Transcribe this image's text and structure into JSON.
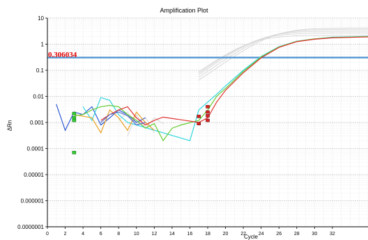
{
  "chart_data": {
    "type": "line",
    "title": "Amplification Plot",
    "xlabel": "Cycle",
    "ylabel": "ΔRn",
    "yscale": "log",
    "xlim": [
      0,
      36
    ],
    "ylim": [
      1e-07,
      10
    ],
    "x_ticks": [
      0,
      2,
      4,
      6,
      8,
      10,
      12,
      14,
      16,
      18,
      20,
      22,
      24,
      26,
      28,
      30,
      32
    ],
    "y_ticks": [
      {
        "value": 10,
        "label": "10"
      },
      {
        "value": 1,
        "label": "1"
      },
      {
        "value": 0.1,
        "label": "0.1"
      },
      {
        "value": 0.01,
        "label": "0.01"
      },
      {
        "value": 0.001,
        "label": "0.001"
      },
      {
        "value": 0.0001,
        "label": "0.0001"
      },
      {
        "value": 1e-05,
        "label": "0.00001"
      },
      {
        "value": 1e-06,
        "label": "0.000001"
      },
      {
        "value": 1e-07,
        "label": "0.0000001"
      }
    ],
    "grid": true,
    "threshold": {
      "value": 0.306034,
      "label": "0.306034",
      "color": "#5b9bd5"
    },
    "series": [
      {
        "color": "#2e5bd6",
        "x": [
          1,
          2,
          3,
          4,
          5,
          6,
          7,
          8,
          9,
          10,
          11
        ],
        "y": [
          0.005,
          0.0005,
          0.0025,
          0.002,
          0.004,
          0.0008,
          0.0015,
          0.003,
          0.002,
          0.001,
          0.0015
        ]
      },
      {
        "color": "#33d6e0",
        "x": [
          4,
          5,
          6,
          7,
          8,
          9,
          10,
          16,
          17,
          18,
          19,
          20,
          22,
          24,
          26,
          28,
          30,
          32,
          36
        ],
        "y": [
          0.004,
          0.0012,
          0.009,
          0.007,
          0.002,
          0.001,
          0.0008,
          0.0002,
          0.003,
          0.006,
          0.012,
          0.025,
          0.1,
          0.34,
          0.8,
          1.3,
          1.6,
          1.85,
          2.0
        ]
      },
      {
        "color": "#e8a020",
        "x": [
          3,
          5,
          6,
          7,
          8,
          9,
          10,
          11,
          12
        ],
        "y": [
          0.002,
          0.0015,
          0.0004,
          0.003,
          0.0015,
          0.0005,
          0.0025,
          0.001,
          0.0005
        ]
      },
      {
        "color": "#66cc33",
        "x": [
          3,
          4,
          5,
          6,
          7,
          8,
          9,
          10,
          11,
          12,
          13,
          14,
          15,
          17,
          18,
          19,
          20,
          22,
          24,
          26,
          28,
          30,
          32,
          36
        ],
        "y": [
          0.0018,
          0.002,
          0.003,
          0.004,
          0.0045,
          0.004,
          0.002,
          0.0012,
          0.0006,
          0.0009,
          0.0002,
          0.0006,
          0.0008,
          0.0012,
          0.003,
          0.01,
          0.02,
          0.09,
          0.32,
          0.78,
          1.28,
          1.6,
          1.8,
          1.95
        ]
      },
      {
        "color": "#e03030",
        "x": [
          6,
          7,
          8,
          9,
          10,
          11,
          12,
          13,
          17,
          18,
          19,
          20,
          22,
          24,
          26,
          28,
          30,
          32,
          36
        ],
        "y": [
          0.0012,
          0.002,
          0.003,
          0.004,
          0.0015,
          0.0008,
          0.0012,
          0.0016,
          0.001,
          0.0015,
          0.006,
          0.017,
          0.08,
          0.3,
          0.75,
          1.25,
          1.55,
          1.75,
          1.9
        ]
      },
      {
        "color": "#5a6ec8",
        "x": [
          6,
          7,
          8,
          9,
          10,
          11
        ],
        "y": [
          0.001,
          0.002,
          0.0025,
          0.0018,
          0.0008,
          0.001
        ]
      }
    ],
    "background_series_color": "#d8d8d8"
  }
}
